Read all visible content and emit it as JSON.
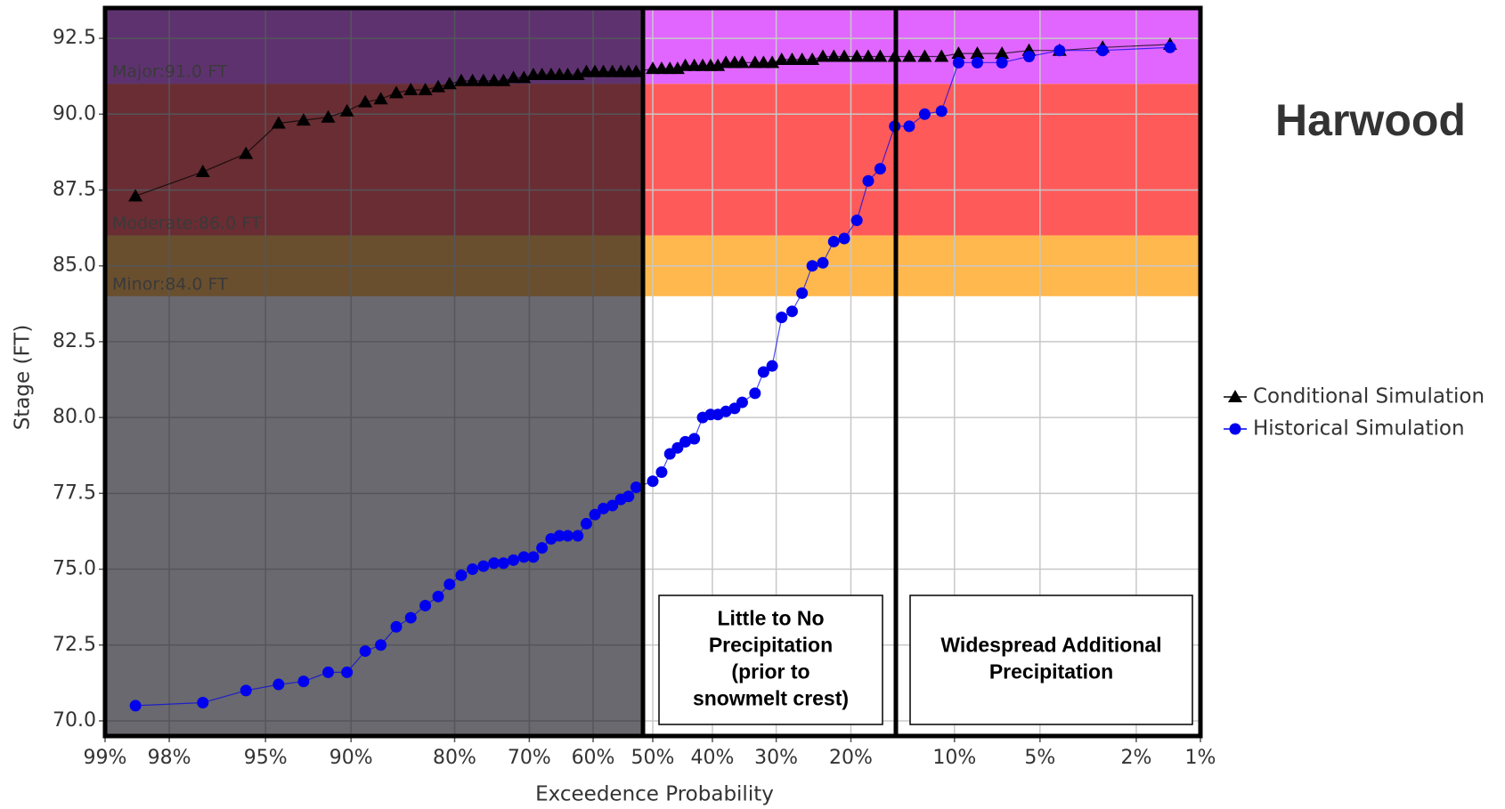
{
  "chart_data": {
    "type": "line",
    "title": "Harwood",
    "x_label": "Exceedence Probability",
    "y_label": "Stage (FT)",
    "xscale": "normal-probability",
    "xlim": [
      99,
      1
    ],
    "ylim": [
      69.5,
      93.5
    ],
    "xticks": [
      {
        "value": 99,
        "label": "99%"
      },
      {
        "value": 98,
        "label": "98%"
      },
      {
        "value": 95,
        "label": "95%"
      },
      {
        "value": 90,
        "label": "90%"
      },
      {
        "value": 80,
        "label": "80%"
      },
      {
        "value": 70,
        "label": "70%"
      },
      {
        "value": 60,
        "label": "60%"
      },
      {
        "value": 50,
        "label": "50%"
      },
      {
        "value": 40,
        "label": "40%"
      },
      {
        "value": 30,
        "label": "30%"
      },
      {
        "value": 20,
        "label": "20%"
      },
      {
        "value": 10,
        "label": "10%"
      },
      {
        "value": 5,
        "label": "5%"
      },
      {
        "value": 2,
        "label": "2%"
      },
      {
        "value": 1,
        "label": "1%"
      }
    ],
    "yticks": [
      {
        "value": 70,
        "label": "70.0"
      },
      {
        "value": 72.5,
        "label": "72.5"
      },
      {
        "value": 75,
        "label": "75.0"
      },
      {
        "value": 77.5,
        "label": "77.5"
      },
      {
        "value": 80,
        "label": "80.0"
      },
      {
        "value": 82.5,
        "label": "82.5"
      },
      {
        "value": 85,
        "label": "85.0"
      },
      {
        "value": 87.5,
        "label": "87.5"
      },
      {
        "value": 90,
        "label": "90.0"
      },
      {
        "value": 92.5,
        "label": "92.5"
      }
    ],
    "grid": true,
    "legend": "right",
    "flood_levels": [
      {
        "label": "Major:91.0 FT",
        "value": 91,
        "color": "#e066ff"
      },
      {
        "label": "Moderate:86.0 FT",
        "value": 86,
        "color": "#ff5a5a"
      },
      {
        "label": "Minor:84.0 FT",
        "value": 84,
        "color": "#ffb84d"
      }
    ],
    "annotations": [
      [
        "Little to No",
        "Precipitation",
        "(prior to",
        "snowmelt crest)"
      ],
      [
        "Widespread Additional",
        "Precipitation"
      ]
    ],
    "x": [
      98.6,
      97.2,
      95.8,
      94.4,
      93.1,
      91.6,
      90.3,
      88.9,
      87.6,
      86.2,
      84.8,
      83.3,
      81.9,
      80.6,
      79.2,
      77.8,
      76.4,
      75.0,
      73.7,
      72.3,
      70.8,
      69.4,
      68.1,
      66.7,
      65.4,
      64.1,
      62.5,
      61.1,
      59.7,
      58.3,
      56.8,
      55.4,
      54.1,
      52.8,
      50.0,
      48.5,
      47.1,
      45.8,
      44.5,
      43.0,
      41.6,
      40.3,
      39.1,
      37.8,
      36.4,
      35.2,
      33.2,
      31.9,
      30.6,
      29.2,
      27.7,
      26.3,
      24.9,
      23.5,
      22.1,
      20.8,
      19.3,
      18.0,
      16.7,
      15.2,
      13.8,
      12.4,
      11.0,
      9.7,
      8.4,
      6.9,
      5.5,
      4.2,
      2.8,
      1.4
    ],
    "series": [
      {
        "name": "Conditional Simulation",
        "color": "#000000",
        "marker": "triangle",
        "values": [
          87.3,
          88.1,
          88.7,
          89.7,
          89.8,
          89.9,
          90.1,
          90.4,
          90.5,
          90.7,
          90.8,
          90.8,
          90.9,
          91.0,
          91.1,
          91.1,
          91.1,
          91.1,
          91.1,
          91.2,
          91.2,
          91.3,
          91.3,
          91.3,
          91.3,
          91.3,
          91.3,
          91.4,
          91.4,
          91.4,
          91.4,
          91.4,
          91.4,
          91.4,
          91.5,
          91.5,
          91.5,
          91.5,
          91.6,
          91.6,
          91.6,
          91.6,
          91.6,
          91.7,
          91.7,
          91.7,
          91.7,
          91.7,
          91.7,
          91.8,
          91.8,
          91.8,
          91.8,
          91.9,
          91.9,
          91.9,
          91.9,
          91.9,
          91.9,
          91.9,
          91.9,
          91.9,
          91.9,
          92.0,
          92.0,
          92.0,
          92.1,
          92.1,
          92.2,
          92.3
        ]
      },
      {
        "name": "Historical Simulation",
        "color": "#0000ee",
        "marker": "circle",
        "values": [
          70.5,
          70.6,
          71.0,
          71.2,
          71.3,
          71.6,
          71.6,
          72.3,
          72.5,
          73.1,
          73.4,
          73.8,
          74.1,
          74.5,
          74.8,
          75.0,
          75.1,
          75.2,
          75.2,
          75.3,
          75.4,
          75.4,
          75.7,
          76.0,
          76.1,
          76.1,
          76.1,
          76.5,
          76.8,
          77.0,
          77.1,
          77.3,
          77.4,
          77.7,
          77.9,
          78.2,
          78.8,
          79.0,
          79.2,
          79.3,
          80.0,
          80.1,
          80.1,
          80.2,
          80.3,
          80.5,
          80.8,
          81.5,
          81.7,
          83.3,
          83.5,
          84.1,
          85.0,
          85.1,
          85.8,
          85.9,
          86.5,
          87.8,
          88.2,
          89.6,
          89.6,
          90.0,
          90.1,
          91.7,
          91.7,
          91.7,
          91.9,
          92.1,
          92.1,
          92.2
        ]
      }
    ]
  }
}
